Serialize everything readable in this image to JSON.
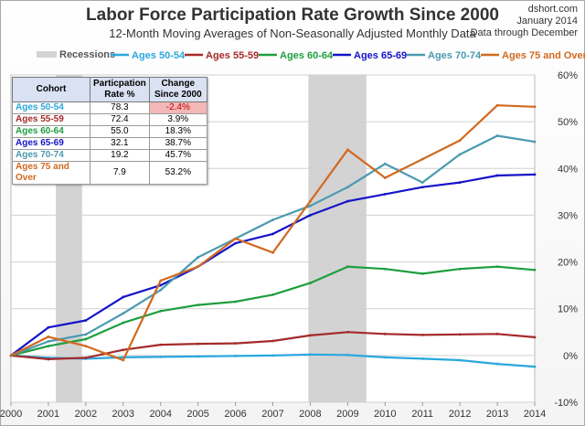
{
  "header": {
    "title": "Labor Force Participation Rate Growth Since 2000",
    "subtitle": "12-Month Moving Averages of Non-Seasonally Adjusted Monthly Data",
    "source_line1": "dshort.com",
    "source_line2": "January 2014",
    "source_line3": "Data through December"
  },
  "legend": {
    "recessions_label": "Recessions"
  },
  "table": {
    "headers": [
      "Cohort",
      "Particpation Rate %",
      "Change Since 2000"
    ],
    "rows": [
      {
        "cohort": "Ages 50-54",
        "rate": "78.3",
        "change": "-2.4%",
        "color": "#2aa7de"
      },
      {
        "cohort": "Ages 55-59",
        "rate": "72.4",
        "change": "3.9%",
        "color": "#a52a2a"
      },
      {
        "cohort": "Ages 60-64",
        "rate": "55.0",
        "change": "18.3%",
        "color": "#1e9e3e"
      },
      {
        "cohort": "Ages 65-69",
        "rate": "32.1",
        "change": "38.7%",
        "color": "#1414c8"
      },
      {
        "cohort": "Ages 70-74",
        "rate": "19.2",
        "change": "45.7%",
        "color": "#4a9ab0"
      },
      {
        "cohort": "Ages 75 and Over",
        "rate": "7.9",
        "change": "53.2%",
        "color": "#d2691e"
      }
    ]
  },
  "chart_data": {
    "type": "line",
    "title": "Labor Force Participation Rate Growth Since 2000",
    "subtitle": "12-Month Moving Averages of Non-Seasonally Adjusted Monthly Data",
    "xlim": [
      2000,
      2014
    ],
    "ylim": [
      -10,
      60
    ],
    "x_ticks": [
      "2000",
      "2001",
      "2002",
      "2003",
      "2004",
      "2005",
      "2006",
      "2007",
      "2008",
      "2009",
      "2010",
      "2011",
      "2012",
      "2013",
      "2014"
    ],
    "y_ticks": [
      "-10%",
      "0%",
      "10%",
      "20%",
      "30%",
      "40%",
      "50%",
      "60%"
    ],
    "recessions": [
      [
        2001.2,
        2001.9
      ],
      [
        2007.95,
        2009.5
      ]
    ],
    "recession_color": "#d3d3d3",
    "series": [
      {
        "name": "Ages 50-54",
        "color": "#2aa7de",
        "x": [
          2000,
          2001,
          2002,
          2003,
          2004,
          2005,
          2006,
          2007,
          2008,
          2009,
          2010,
          2011,
          2012,
          2013,
          2014
        ],
        "values": [
          0,
          -0.5,
          -0.7,
          -0.4,
          -0.3,
          -0.2,
          -0.1,
          0,
          0.2,
          0.1,
          -0.4,
          -0.7,
          -1,
          -1.8,
          -2.4
        ]
      },
      {
        "name": "Ages 55-59",
        "color": "#a52a2a",
        "x": [
          2000,
          2001,
          2002,
          2003,
          2004,
          2005,
          2006,
          2007,
          2008,
          2009,
          2010,
          2011,
          2012,
          2013,
          2014
        ],
        "values": [
          0,
          -0.8,
          -0.5,
          1.2,
          2.3,
          2.5,
          2.6,
          3.1,
          4.3,
          5,
          4.6,
          4.4,
          4.5,
          4.6,
          3.9
        ]
      },
      {
        "name": "Ages 60-64",
        "color": "#1e9e3e",
        "x": [
          2000,
          2001,
          2002,
          2003,
          2004,
          2005,
          2006,
          2007,
          2008,
          2009,
          2010,
          2011,
          2012,
          2013,
          2014
        ],
        "values": [
          0,
          2,
          3.5,
          7,
          9.5,
          10.8,
          11.5,
          13,
          15.5,
          19,
          18.5,
          17.5,
          18.5,
          19,
          18.3
        ]
      },
      {
        "name": "Ages 65-69",
        "color": "#1414c8",
        "x": [
          2000,
          2001,
          2002,
          2003,
          2004,
          2005,
          2006,
          2007,
          2008,
          2009,
          2010,
          2011,
          2012,
          2013,
          2014
        ],
        "values": [
          0,
          6,
          7.5,
          12.5,
          15,
          19,
          24,
          26,
          30,
          33,
          34.5,
          36,
          37,
          38.5,
          38.7
        ]
      },
      {
        "name": "Ages 70-74",
        "color": "#4a9ab0",
        "x": [
          2000,
          2001,
          2002,
          2003,
          2004,
          2005,
          2006,
          2007,
          2008,
          2009,
          2010,
          2011,
          2012,
          2013,
          2014
        ],
        "values": [
          0,
          3,
          4.5,
          9,
          14,
          21,
          25,
          29,
          32,
          36,
          41,
          37,
          43,
          47,
          45.7
        ]
      },
      {
        "name": "Ages 75 and Over",
        "color": "#d2691e",
        "x": [
          2000,
          2001,
          2002,
          2003,
          2004,
          2005,
          2006,
          2007,
          2008,
          2009,
          2010,
          2011,
          2012,
          2013,
          2014
        ],
        "values": [
          0,
          4,
          2,
          -1,
          16,
          19,
          25,
          22,
          33,
          44,
          38,
          42,
          46,
          53.5,
          53.2
        ]
      }
    ]
  }
}
